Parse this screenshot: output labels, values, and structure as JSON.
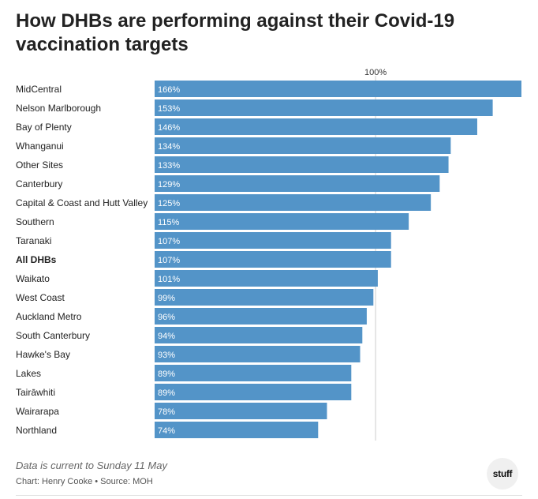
{
  "title": "How DHBs are performing against their Covid-19 vaccination targets",
  "note": "Data is current to Sunday 11 May",
  "source": "Chart: Henry Cooke • Source: MOH",
  "logo_text": "stuff",
  "colors": {
    "bar": "#5394c8",
    "reference_line": "#cccccc",
    "bar_label": "#ffffff"
  },
  "chart_data": {
    "type": "bar",
    "orientation": "horizontal",
    "value_suffix": "%",
    "reference_line": {
      "value": 100,
      "label": "100%"
    },
    "xlim": [
      0,
      166
    ],
    "grid": false,
    "bold_categories": [
      "All DHBs"
    ],
    "categories": [
      "MidCentral",
      "Nelson Marlborough",
      "Bay of Plenty",
      "Whanganui",
      "Other Sites",
      "Canterbury",
      "Capital & Coast and Hutt Valley",
      "Southern",
      "Taranaki",
      "All DHBs",
      "Waikato",
      "West Coast",
      "Auckland Metro",
      "South Canterbury",
      "Hawke's Bay",
      "Lakes",
      "Tairāwhiti",
      "Wairarapa",
      "Northland"
    ],
    "values": [
      166,
      153,
      146,
      134,
      133,
      129,
      125,
      115,
      107,
      107,
      101,
      99,
      96,
      94,
      93,
      89,
      89,
      78,
      74
    ]
  }
}
